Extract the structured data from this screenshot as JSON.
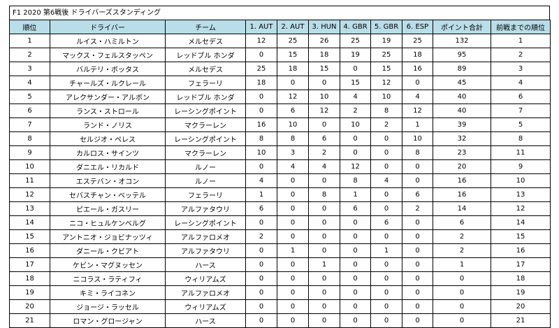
{
  "title": "F1 2020 第6戦後 ドライバーズスタンディング",
  "columns": [
    "順位",
    "ドライバー",
    "チーム",
    "1. AUT",
    "2. AUT",
    "3. HUN",
    "4. GBR",
    "5. GBR",
    "6. ESP",
    "ポイント合計",
    "前戦までの順位"
  ],
  "rows": [
    [
      "1",
      "ルイス・ハミルトン",
      "メルセデス",
      "12",
      "25",
      "26",
      "25",
      "19",
      "25",
      "132",
      "1"
    ],
    [
      "2",
      "マックス・フェルスタッペン",
      "レッドブル ホンダ",
      "0",
      "15",
      "18",
      "19",
      "25",
      "18",
      "95",
      "2"
    ],
    [
      "3",
      "バルテリ・ボッタス",
      "メルセデス",
      "25",
      "18",
      "15",
      "0",
      "15",
      "16",
      "89",
      "3"
    ],
    [
      "4",
      "チャールズ・ルクレール",
      "フェラーリ",
      "18",
      "0",
      "0",
      "15",
      "12",
      "0",
      "45",
      "4"
    ],
    [
      "5",
      "アレクサンダー・アルボン",
      "レッドブル ホンダ",
      "0",
      "12",
      "10",
      "4",
      "10",
      "4",
      "40",
      "6"
    ],
    [
      "6",
      "ランス・ストロール",
      "レーシングポイント",
      "0",
      "6",
      "12",
      "2",
      "8",
      "12",
      "40",
      "7"
    ],
    [
      "7",
      "ランド・ノリス",
      "マクラーレン",
      "16",
      "10",
      "0",
      "10",
      "2",
      "1",
      "39",
      "5"
    ],
    [
      "8",
      "セルジオ・ペレス",
      "レーシングポイント",
      "8",
      "8",
      "6",
      "0",
      "0",
      "10",
      "32",
      "8"
    ],
    [
      "9",
      "カルロス・サインツ",
      "マクラーレン",
      "10",
      "3",
      "2",
      "0",
      "0",
      "8",
      "23",
      "11"
    ],
    [
      "10",
      "ダニエル・リカルド",
      "ルノー",
      "0",
      "4",
      "4",
      "12",
      "0",
      "0",
      "20",
      "9"
    ],
    [
      "11",
      "エステバン・オコン",
      "ルノー",
      "4",
      "0",
      "0",
      "8",
      "4",
      "0",
      "16",
      "10"
    ],
    [
      "12",
      "セバスチャン・ベッテル",
      "フェラーリ",
      "1",
      "0",
      "8",
      "1",
      "0",
      "6",
      "16",
      "13"
    ],
    [
      "13",
      "ピエール・ガスリー",
      "アルファタウリ",
      "6",
      "0",
      "0",
      "6",
      "0",
      "2",
      "14",
      "12"
    ],
    [
      "14",
      "ニコ・ヒュルケンベルグ",
      "レーシングポイント",
      "0",
      "0",
      "0",
      "0",
      "6",
      "0",
      "6",
      "14"
    ],
    [
      "15",
      "アントニオ・ジョビナッツィ",
      "アルファロメオ",
      "2",
      "0",
      "0",
      "0",
      "0",
      "0",
      "2",
      "15"
    ],
    [
      "16",
      "ダニール・クビアト",
      "アルファタウリ",
      "0",
      "1",
      "0",
      "0",
      "1",
      "0",
      "2",
      "16"
    ],
    [
      "17",
      "ケビン・マグヌッセン",
      "ハース",
      "0",
      "0",
      "1",
      "0",
      "0",
      "0",
      "1",
      "17"
    ],
    [
      "18",
      "ニコラス・ラティフィ",
      "ウィリアムズ",
      "0",
      "0",
      "0",
      "0",
      "0",
      "0",
      "0",
      "18"
    ],
    [
      "19",
      "キミ・ライコネン",
      "アルファロメオ",
      "0",
      "0",
      "0",
      "0",
      "0",
      "0",
      "0",
      "19"
    ],
    [
      "20",
      "ジョージ・ラッセル",
      "ウィリアムズ",
      "0",
      "0",
      "0",
      "0",
      "0",
      "0",
      "0",
      "20"
    ],
    [
      "21",
      "ロマン・グロージャン",
      "ハース",
      "0",
      "0",
      "0",
      "0",
      "0",
      "0",
      "0",
      "21"
    ]
  ],
  "colors": {
    "header_bg": "#b9dde9",
    "border": "#000000"
  }
}
